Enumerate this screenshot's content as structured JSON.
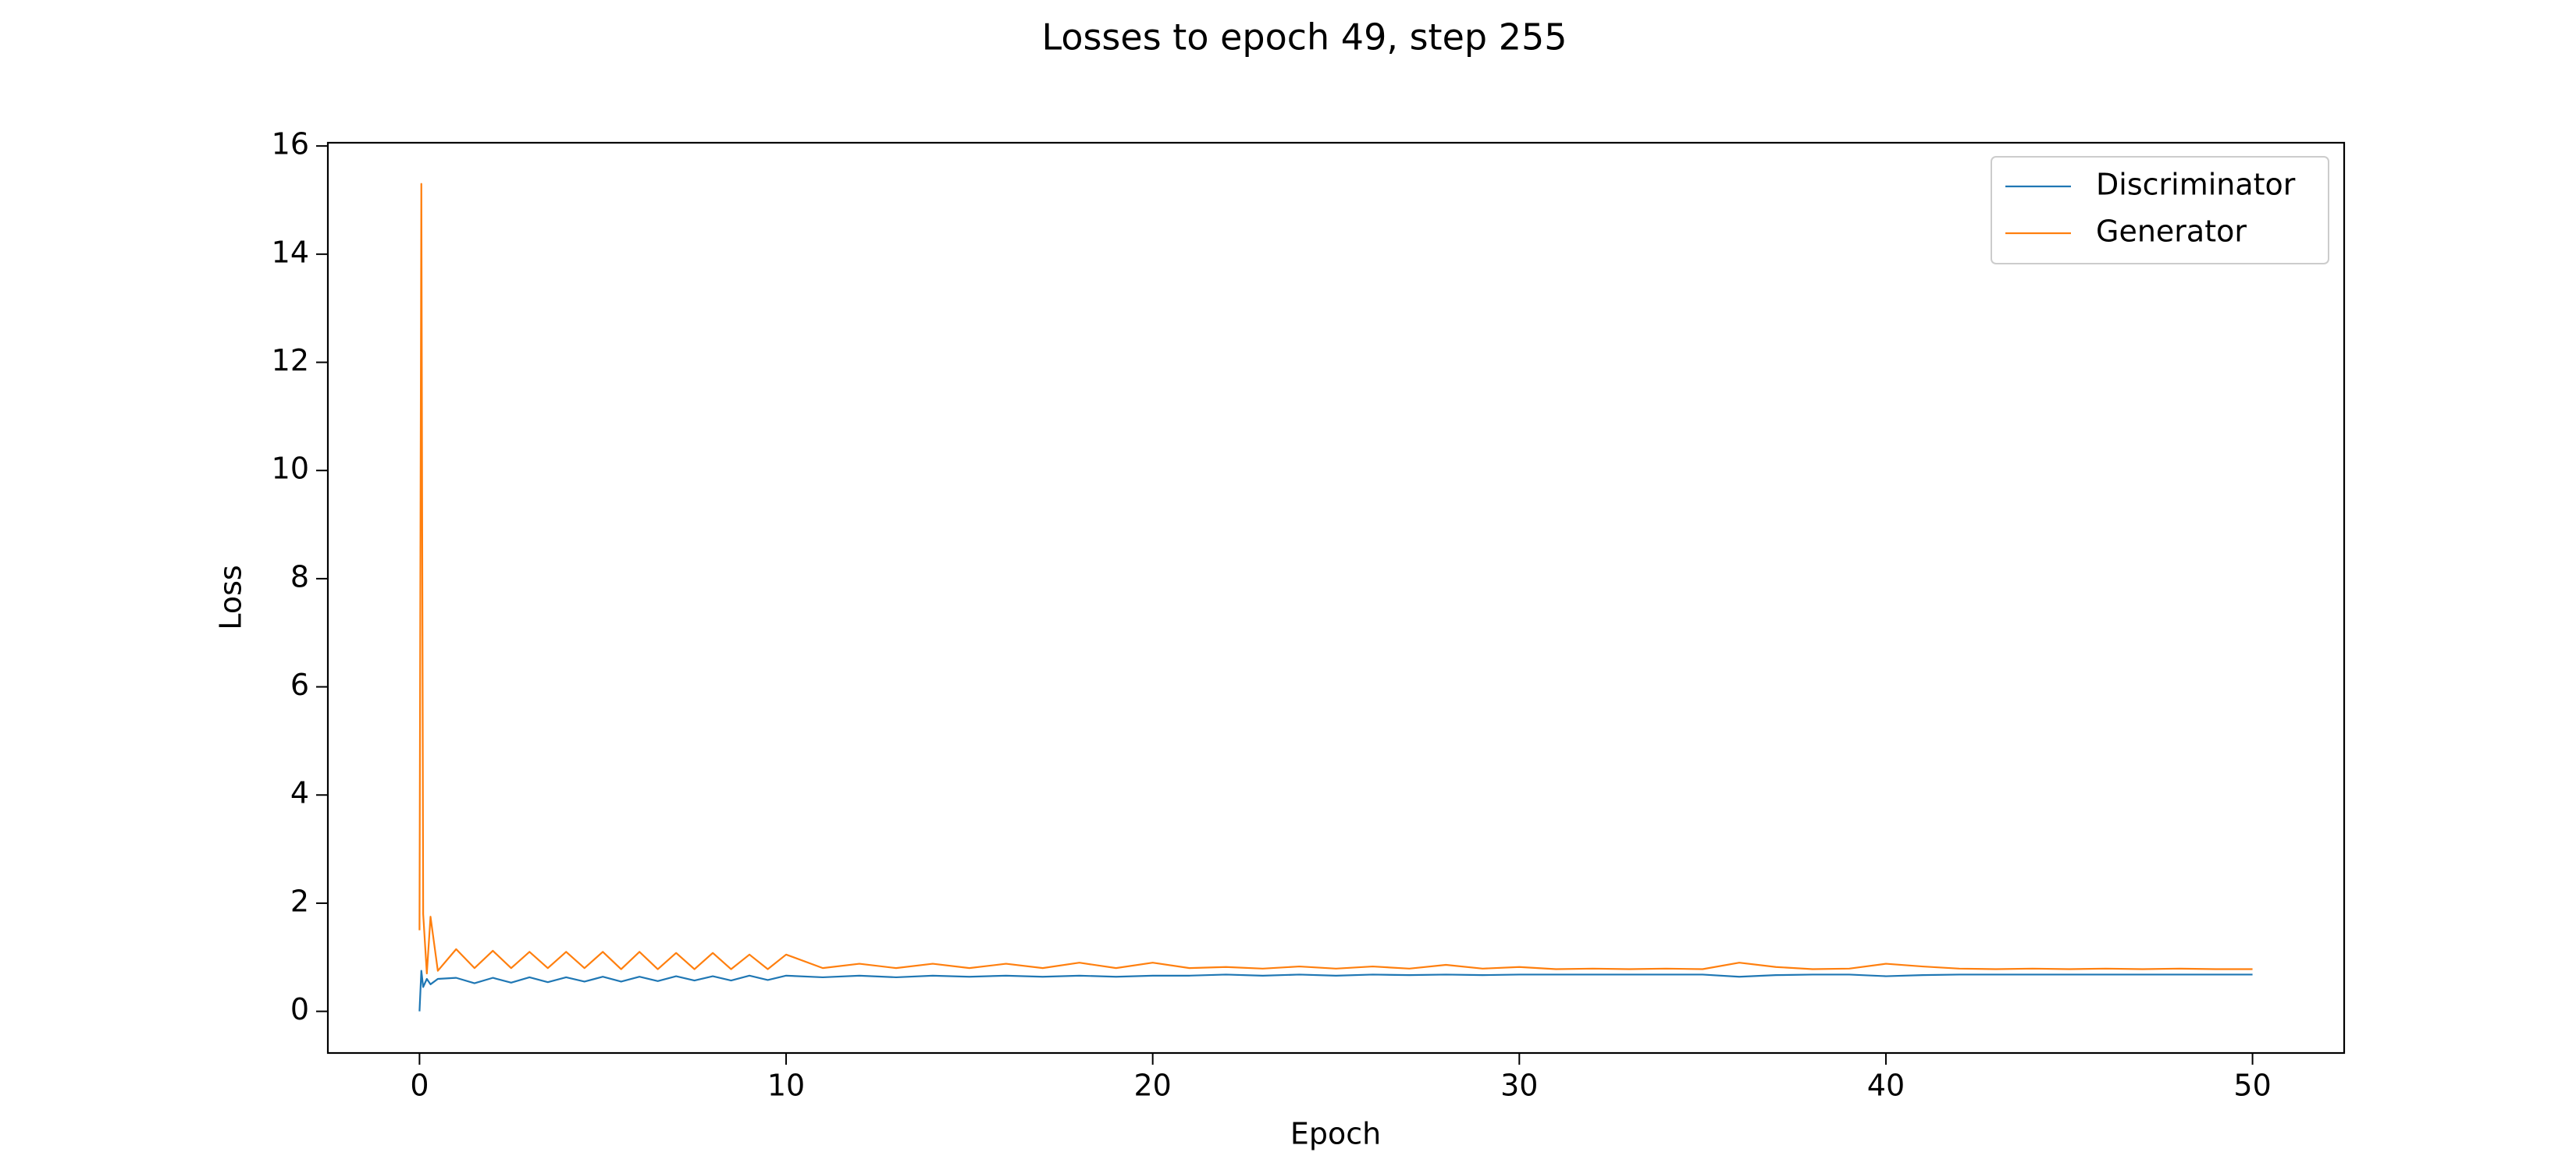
{
  "chart_data": {
    "type": "line",
    "title": "Losses to epoch 49, step 255",
    "xlabel": "Epoch",
    "ylabel": "Loss",
    "x": [
      0,
      0.05,
      0.1,
      0.2,
      0.3,
      0.5,
      1,
      1.5,
      2,
      2.5,
      3,
      3.5,
      4,
      4.5,
      5,
      5.5,
      6,
      6.5,
      7,
      7.5,
      8,
      8.5,
      9,
      9.5,
      10,
      11,
      12,
      13,
      14,
      15,
      16,
      17,
      18,
      19,
      20,
      21,
      22,
      23,
      24,
      25,
      26,
      27,
      28,
      29,
      30,
      31,
      32,
      33,
      34,
      35,
      36,
      37,
      38,
      39,
      40,
      41,
      42,
      43,
      44,
      45,
      46,
      47,
      48,
      49,
      50
    ],
    "series": [
      {
        "name": "Discriminator",
        "color": "#1f77b4",
        "values": [
          0.0,
          0.75,
          0.45,
          0.6,
          0.5,
          0.6,
          0.62,
          0.52,
          0.62,
          0.53,
          0.63,
          0.54,
          0.63,
          0.55,
          0.64,
          0.55,
          0.64,
          0.56,
          0.65,
          0.57,
          0.65,
          0.57,
          0.66,
          0.58,
          0.66,
          0.63,
          0.66,
          0.63,
          0.66,
          0.64,
          0.66,
          0.64,
          0.66,
          0.64,
          0.66,
          0.66,
          0.68,
          0.66,
          0.68,
          0.66,
          0.68,
          0.67,
          0.68,
          0.67,
          0.68,
          0.68,
          0.68,
          0.68,
          0.68,
          0.68,
          0.64,
          0.67,
          0.68,
          0.68,
          0.65,
          0.67,
          0.68,
          0.68,
          0.68,
          0.68,
          0.68,
          0.68,
          0.68,
          0.68,
          0.68
        ]
      },
      {
        "name": "Generator",
        "color": "#ff7f0e",
        "values": [
          1.5,
          15.3,
          1.8,
          0.7,
          1.75,
          0.75,
          1.15,
          0.8,
          1.12,
          0.8,
          1.1,
          0.8,
          1.1,
          0.8,
          1.1,
          0.78,
          1.1,
          0.78,
          1.08,
          0.78,
          1.08,
          0.78,
          1.05,
          0.78,
          1.05,
          0.8,
          0.88,
          0.8,
          0.88,
          0.8,
          0.88,
          0.8,
          0.9,
          0.8,
          0.9,
          0.8,
          0.82,
          0.79,
          0.83,
          0.79,
          0.83,
          0.79,
          0.86,
          0.79,
          0.82,
          0.78,
          0.79,
          0.78,
          0.79,
          0.78,
          0.9,
          0.82,
          0.78,
          0.79,
          0.88,
          0.83,
          0.79,
          0.78,
          0.79,
          0.78,
          0.79,
          0.78,
          0.79,
          0.78,
          0.78
        ]
      }
    ],
    "xlim": [
      -2.5,
      52.5
    ],
    "ylim": [
      -0.77,
      16.06
    ],
    "xticks": [
      0,
      10,
      20,
      30,
      40,
      50
    ],
    "yticks": [
      0,
      2,
      4,
      6,
      8,
      10,
      12,
      14,
      16
    ],
    "grid": false,
    "legend": "upper right"
  }
}
